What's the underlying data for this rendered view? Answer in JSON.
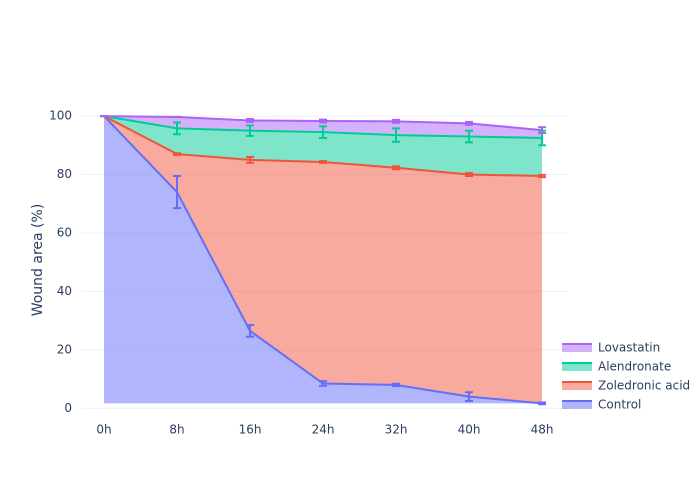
{
  "chart_data": {
    "type": "area",
    "y_label": "Wound area (%)",
    "categories": [
      "0h",
      "8h",
      "16h",
      "24h",
      "32h",
      "40h",
      "48h"
    ],
    "series": [
      {
        "name": "Control",
        "color": "#636efa",
        "values": [
          100,
          74,
          26.5,
          8.5,
          8,
          4,
          1.7
        ],
        "errors": [
          0,
          5.5,
          2,
          0.8,
          0.4,
          1.5,
          0.3
        ]
      },
      {
        "name": "Zoledronic acid",
        "color": "#ef553b",
        "values": [
          100,
          87,
          85,
          84.3,
          82.3,
          80,
          79.5
        ],
        "errors": [
          0,
          0.3,
          1,
          0.3,
          0.5,
          0.5,
          0.4
        ]
      },
      {
        "name": "Alendronate",
        "color": "#00cc96",
        "values": [
          100,
          95.8,
          95,
          94.5,
          93.5,
          93,
          92.5
        ],
        "errors": [
          0,
          2,
          1.8,
          2,
          2.3,
          2,
          2.5
        ]
      },
      {
        "name": "Lovastatin",
        "color": "#ab63fa",
        "values": [
          100,
          99.7,
          98.5,
          98.3,
          98.2,
          97.5,
          95.2
        ],
        "errors": [
          0,
          0,
          0.5,
          0.5,
          0.5,
          0.5,
          1
        ]
      }
    ],
    "ylim": [
      -4,
      105.5
    ],
    "yticks": [
      0,
      20,
      40,
      60,
      80,
      100
    ],
    "grid": true,
    "legend": "bottom-right"
  }
}
